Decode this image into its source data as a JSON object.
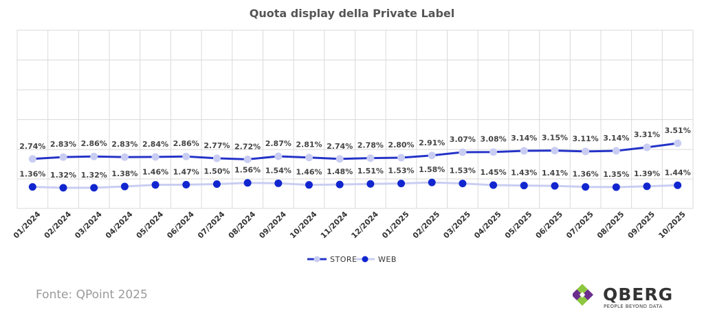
{
  "chart_data": {
    "type": "line",
    "title": "Quota display della Private Label",
    "categories": [
      "01/2024",
      "02/2024",
      "03/2024",
      "04/2024",
      "05/2024",
      "06/2024",
      "07/2024",
      "08/2024",
      "09/2024",
      "10/2024",
      "11/2024",
      "12/2024",
      "01/2025",
      "02/2025",
      "03/2025",
      "04/2025",
      "05/2025",
      "06/2025",
      "07/2025",
      "08/2025",
      "09/2025",
      "10/2025"
    ],
    "series": [
      {
        "name": "STORE",
        "values": [
          2.74,
          2.83,
          2.86,
          2.83,
          2.84,
          2.86,
          2.77,
          2.72,
          2.87,
          2.81,
          2.74,
          2.78,
          2.8,
          2.91,
          3.07,
          3.08,
          3.14,
          3.15,
          3.11,
          3.14,
          3.31,
          3.51
        ],
        "labels": [
          "2.74%",
          "2.83%",
          "2.86%",
          "2.83%",
          "2.84%",
          "2.86%",
          "2.77%",
          "2.72%",
          "2.87%",
          "2.81%",
          "2.74%",
          "2.78%",
          "2.80%",
          "2.91%",
          "3.07%",
          "3.08%",
          "3.14%",
          "3.15%",
          "3.11%",
          "3.14%",
          "3.31%",
          "3.51%"
        ],
        "line_color": "#2433c8",
        "marker_color": "#c9cdf2"
      },
      {
        "name": "WEB",
        "values": [
          1.36,
          1.32,
          1.32,
          1.38,
          1.46,
          1.47,
          1.5,
          1.56,
          1.54,
          1.46,
          1.48,
          1.51,
          1.53,
          1.58,
          1.53,
          1.45,
          1.43,
          1.41,
          1.36,
          1.35,
          1.39,
          1.44
        ],
        "labels": [
          "1.36%",
          "1.32%",
          "1.32%",
          "1.38%",
          "1.46%",
          "1.47%",
          "1.50%",
          "1.56%",
          "1.54%",
          "1.46%",
          "1.48%",
          "1.51%",
          "1.53%",
          "1.58%",
          "1.53%",
          "1.45%",
          "1.43%",
          "1.41%",
          "1.36%",
          "1.35%",
          "1.39%",
          "1.44%"
        ],
        "line_color": "#c9cdf2",
        "marker_color": "#1126cf"
      }
    ],
    "xlabel": "",
    "ylabel": "",
    "grid": true,
    "legend_position": "bottom-center"
  },
  "source": "Fonte: QPoint 2025",
  "logo": {
    "name": "QBERG",
    "tagline": "PEOPLE BEYOND DATA"
  }
}
